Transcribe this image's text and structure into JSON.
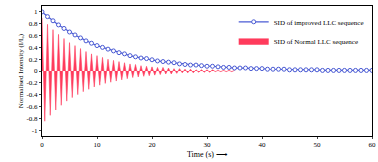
{
  "chart_data": {
    "type": "line",
    "x_label": "Time (s) ⟶",
    "y_label": "Normalised Intensity (I/I₀)",
    "xlim": [
      0,
      60
    ],
    "xticks": [
      0,
      10,
      20,
      30,
      40,
      50,
      60
    ],
    "ylim": [
      -1.1,
      1.1
    ],
    "yticks": [
      -1,
      -0.8,
      -0.6,
      -0.4,
      -0.2,
      0,
      0.2,
      0.4,
      0.6,
      0.8,
      1
    ],
    "grid": false,
    "legend": "top-right",
    "series": [
      {
        "name": "SID of improved LLC sequence",
        "type": "line",
        "marker": "circle",
        "line_style": "solid",
        "color": "#4a5bd4",
        "x": [
          0,
          1,
          2,
          3,
          4,
          5,
          6,
          7,
          8,
          9,
          10,
          11,
          12,
          13,
          14,
          15,
          16,
          17,
          18,
          19,
          20,
          21,
          22,
          23,
          24,
          25,
          26,
          27,
          28,
          29,
          30,
          31,
          32,
          33,
          34,
          35,
          36,
          37,
          38,
          39,
          40,
          41,
          42,
          43,
          44,
          45,
          46,
          47,
          48,
          49,
          50,
          51,
          52,
          53,
          54,
          55,
          56,
          57,
          58,
          59,
          60
        ],
        "values": [
          1.0,
          0.92,
          0.85,
          0.78,
          0.72,
          0.66,
          0.61,
          0.56,
          0.51,
          0.47,
          0.43,
          0.4,
          0.37,
          0.34,
          0.31,
          0.29,
          0.26,
          0.24,
          0.22,
          0.21,
          0.19,
          0.17,
          0.16,
          0.15,
          0.14,
          0.12,
          0.11,
          0.1,
          0.1,
          0.09,
          0.08,
          0.08,
          0.07,
          0.06,
          0.06,
          0.05,
          0.05,
          0.05,
          0.04,
          0.04,
          0.04,
          0.03,
          0.03,
          0.03,
          0.03,
          0.02,
          0.02,
          0.02,
          0.02,
          0.02,
          0.02,
          0.01,
          0.01,
          0.01,
          0.01,
          0.01,
          0.01,
          0.01,
          0.01,
          0.01,
          0.01
        ]
      },
      {
        "name": "SID of Normal LLC sequence",
        "type": "area",
        "line_style": "solid",
        "color": "#ff3b5c",
        "x": [
          0,
          0.5,
          1,
          1.5,
          2,
          2.5,
          3,
          3.5,
          4,
          4.5,
          5,
          5.5,
          6,
          6.5,
          7,
          7.5,
          8,
          8.5,
          9,
          9.5,
          10,
          10.5,
          11,
          11.5,
          12,
          12.5,
          13,
          13.5,
          14,
          14.5,
          15,
          15.5,
          16,
          16.5,
          17,
          17.5,
          18,
          18.5,
          19,
          19.5,
          20,
          20.5,
          21,
          21.5,
          22,
          22.5,
          23,
          23.5,
          24,
          24.5,
          25,
          25.5,
          26,
          26.5,
          27,
          27.5,
          28,
          28.5,
          29,
          29.5,
          30,
          30.5,
          31,
          31.5,
          32,
          32.5,
          33,
          33.5,
          34,
          34.5,
          35
        ],
        "values": [
          0.9,
          -0.85,
          0.79,
          -0.75,
          0.7,
          -0.66,
          0.62,
          -0.58,
          0.55,
          -0.51,
          0.48,
          -0.45,
          0.43,
          -0.4,
          0.38,
          -0.35,
          0.33,
          -0.31,
          0.29,
          -0.27,
          0.26,
          -0.24,
          0.23,
          -0.21,
          0.2,
          -0.19,
          0.18,
          -0.17,
          0.16,
          -0.15,
          0.14,
          -0.13,
          0.12,
          -0.11,
          0.11,
          -0.1,
          0.09,
          -0.09,
          0.08,
          -0.08,
          0.07,
          -0.07,
          0.06,
          -0.06,
          0.06,
          -0.05,
          0.05,
          -0.05,
          0.04,
          -0.04,
          0.04,
          -0.03,
          0.03,
          -0.03,
          0.03,
          -0.03,
          0.02,
          -0.02,
          0.02,
          -0.02,
          0.02,
          -0.02,
          0.02,
          -0.01,
          0.01,
          -0.01,
          0.01,
          -0.01,
          0.01,
          -0.01,
          0.01
        ]
      }
    ]
  }
}
